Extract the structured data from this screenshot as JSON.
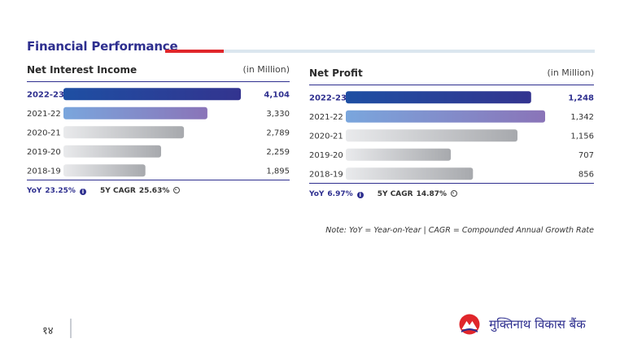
{
  "page_title": "Financial Performance",
  "colors": {
    "accent_navy": "#2e2f8f",
    "accent_red": "#e0262b",
    "bar_current_start": "#1e4fa3",
    "bar_current_end": "#33348f",
    "bar_prev_start": "#7aa6dd",
    "bar_prev_end": "#8a74b8",
    "bar_grey_start": "#e9eaec",
    "bar_grey_end": "#a7a9ad"
  },
  "nii": {
    "name": "Net Interest Income",
    "unit": "(in Million)",
    "yoy_label": "YoY",
    "yoy_value": "23.25%",
    "cagr_label": "5Y CAGR",
    "cagr_value": "25.63%"
  },
  "np": {
    "name": "Net Profit",
    "unit": "(in Million)",
    "yoy_label": "YoY",
    "yoy_value": "6.97%",
    "cagr_label": "5Y CAGR",
    "cagr_value": "14.87%"
  },
  "chart_data": [
    {
      "type": "bar",
      "orientation": "horizontal",
      "title": "Net Interest Income",
      "unit": "(in Million)",
      "categories": [
        "2022-23",
        "2021-22",
        "2020-21",
        "2019-20",
        "2018-19"
      ],
      "values": [
        4104,
        3330,
        2789,
        2259,
        1895
      ],
      "value_labels": [
        "4,104",
        "3,330",
        "2,789",
        "2,259",
        "1,895"
      ],
      "xlim": [
        0,
        4104
      ],
      "grid": false,
      "legend": "none"
    },
    {
      "type": "bar",
      "orientation": "horizontal",
      "title": "Net Profit",
      "unit": "(in Million)",
      "categories": [
        "2022-23",
        "2021-22",
        "2020-21",
        "2019-20",
        "2018-19"
      ],
      "values": [
        1248,
        1342,
        1156,
        707,
        856
      ],
      "value_labels": [
        "1,248",
        "1,342",
        "1,156",
        "707",
        "856"
      ],
      "xlim": [
        0,
        1342
      ],
      "grid": false,
      "legend": "none"
    }
  ],
  "note": "Note: YoY = Year-on-Year | CAGR = Compounded Annual Growth Rate",
  "page_number": "१४",
  "brand": {
    "name": "मुक्तिनाथ विकास बैंक",
    "logo_icon": "muktinath-mountain-logo-icon"
  }
}
